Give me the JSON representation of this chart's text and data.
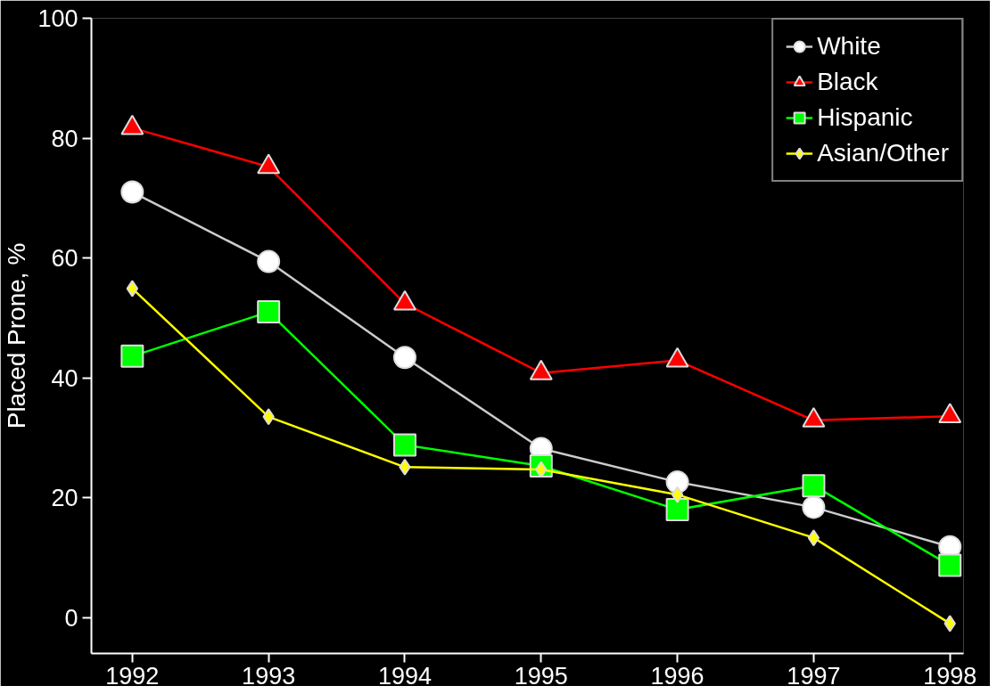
{
  "chart_data": {
    "type": "line",
    "ylabel": "Placed Prone, %",
    "x": [
      1992,
      1993,
      1994,
      1995,
      1996,
      1997,
      1998
    ],
    "xlim": [
      1991.7,
      1998.1
    ],
    "xticks": [
      1992,
      1993,
      1994,
      1995,
      1996,
      1997,
      1998
    ],
    "ylim": [
      -6,
      100
    ],
    "yticks": [
      0,
      20,
      40,
      60,
      80,
      100
    ],
    "grid": false,
    "legend": "top right",
    "series": [
      {
        "name": "White",
        "color": "#ffffff",
        "marker": "circle",
        "values": [
          71,
          59.4,
          43.4,
          28.2,
          22.6,
          18.4,
          11.8
        ]
      },
      {
        "name": "Black",
        "color": "#ff0000",
        "marker": "triangle",
        "values": [
          81.7,
          75.2,
          52.4,
          40.8,
          42.9,
          32.9,
          33.6
        ]
      },
      {
        "name": "Hispanic",
        "color": "#00ff00",
        "marker": "square",
        "values": [
          43.6,
          51,
          28.8,
          25.3,
          18,
          22,
          8.7
        ]
      },
      {
        "name": "Asian/Other",
        "color": "#ffff00",
        "marker": "diamond",
        "values": [
          54.9,
          33.5,
          25.1,
          24.7,
          20.5,
          13.3,
          -1
        ]
      }
    ]
  }
}
